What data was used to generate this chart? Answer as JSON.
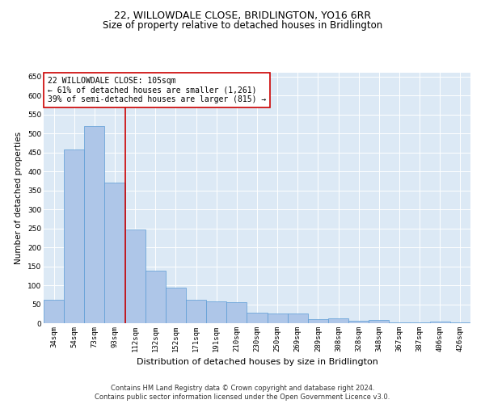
{
  "title": "22, WILLOWDALE CLOSE, BRIDLINGTON, YO16 6RR",
  "subtitle": "Size of property relative to detached houses in Bridlington",
  "xlabel": "Distribution of detached houses by size in Bridlington",
  "ylabel": "Number of detached properties",
  "categories": [
    "34sqm",
    "54sqm",
    "73sqm",
    "93sqm",
    "112sqm",
    "132sqm",
    "152sqm",
    "171sqm",
    "191sqm",
    "210sqm",
    "230sqm",
    "250sqm",
    "269sqm",
    "289sqm",
    "308sqm",
    "328sqm",
    "348sqm",
    "367sqm",
    "387sqm",
    "406sqm",
    "426sqm"
  ],
  "values": [
    62,
    458,
    520,
    370,
    247,
    138,
    93,
    62,
    57,
    55,
    27,
    26,
    26,
    11,
    12,
    6,
    8,
    3,
    3,
    5,
    3
  ],
  "bar_color": "#aec6e8",
  "bar_edge_color": "#5b9bd5",
  "vline_pos": 3.5,
  "vline_color": "#cc0000",
  "annotation_text": "22 WILLOWDALE CLOSE: 105sqm\n← 61% of detached houses are smaller (1,261)\n39% of semi-detached houses are larger (815) →",
  "annotation_box_color": "#ffffff",
  "annotation_box_edge_color": "#cc0000",
  "ylim": [
    0,
    660
  ],
  "yticks": [
    0,
    50,
    100,
    150,
    200,
    250,
    300,
    350,
    400,
    450,
    500,
    550,
    600,
    650
  ],
  "background_color": "#dce9f5",
  "footer_line1": "Contains HM Land Registry data © Crown copyright and database right 2024.",
  "footer_line2": "Contains public sector information licensed under the Open Government Licence v3.0.",
  "title_fontsize": 9,
  "subtitle_fontsize": 8.5,
  "xlabel_fontsize": 8,
  "ylabel_fontsize": 7.5,
  "tick_fontsize": 6.5,
  "annotation_fontsize": 7,
  "footer_fontsize": 6
}
